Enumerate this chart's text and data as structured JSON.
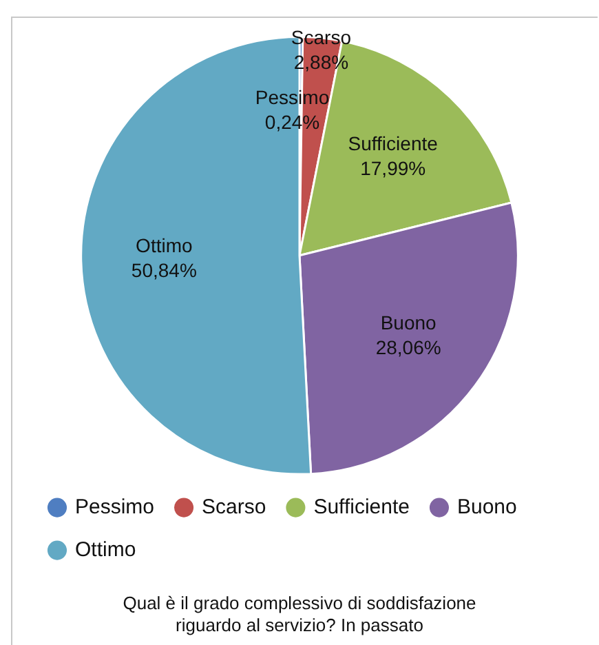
{
  "chart_data": {
    "type": "pie",
    "title": "Qual è il grado complessivo di soddisfazione\nriguardo al servizio? In passato",
    "categories": [
      "Pessimo",
      "Scarso",
      "Sufficiente",
      "Buono",
      "Ottimo"
    ],
    "values": [
      0.24,
      2.88,
      17.99,
      28.06,
      50.84
    ],
    "value_labels": [
      "0,24%",
      "2,88%",
      "17,99%",
      "28,06%",
      "50,84%"
    ],
    "colors": [
      "#4f7ec1",
      "#c0504d",
      "#9bbb59",
      "#8064a2",
      "#62a9c4"
    ],
    "legend": "bottom"
  }
}
